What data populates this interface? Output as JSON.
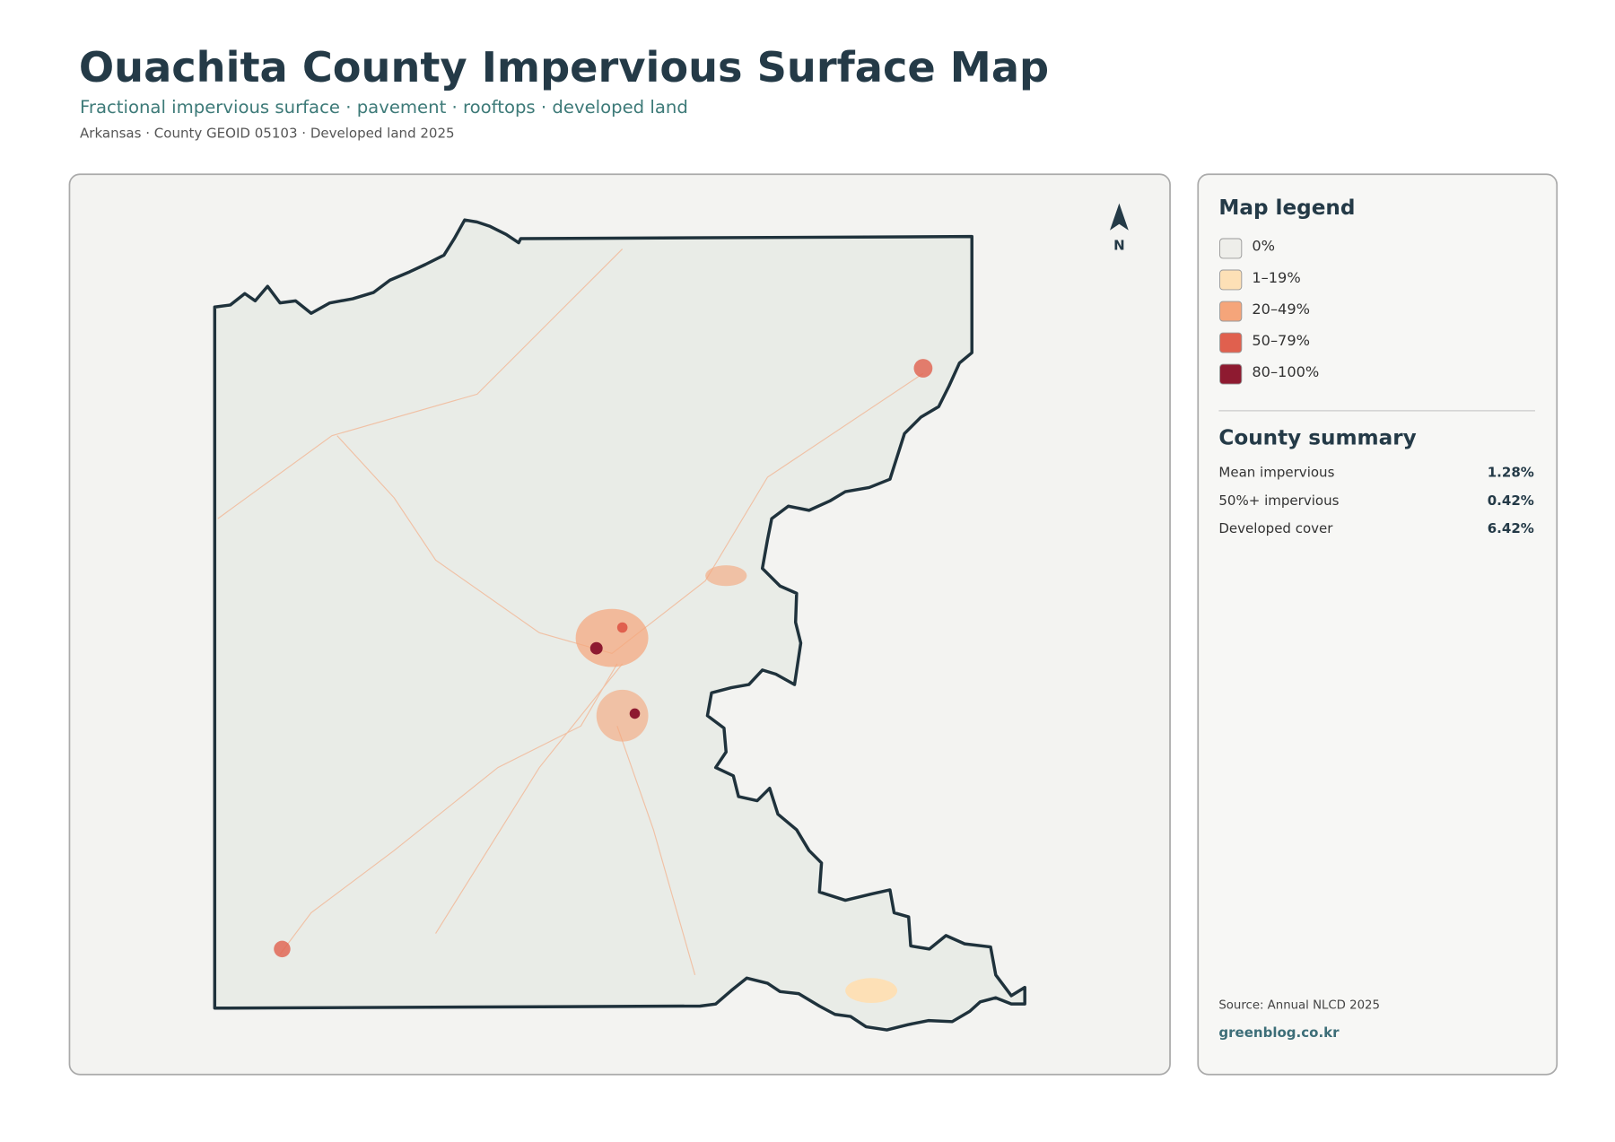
{
  "header": {
    "title": "Ouachita County Impervious Surface Map",
    "subtitle": "Fractional impervious surface · pavement · rooftops · developed land",
    "meta": "Arkansas · County GEOID 05103 · Developed land 2025"
  },
  "map": {
    "north": "N"
  },
  "legend": {
    "title": "Map legend",
    "items": [
      {
        "label": "0%",
        "color": "#eeeeea"
      },
      {
        "label": "1–19%",
        "color": "#fde0b6"
      },
      {
        "label": "20–49%",
        "color": "#f5a57a"
      },
      {
        "label": "50–79%",
        "color": "#e0604e"
      },
      {
        "label": "80–100%",
        "color": "#8e1a30"
      }
    ]
  },
  "summary": {
    "title": "County summary",
    "rows": [
      {
        "label": "Mean impervious",
        "value": "1.28%"
      },
      {
        "label": "50%+ impervious",
        "value": "0.42%"
      },
      {
        "label": "Developed cover",
        "value": "6.42%"
      }
    ]
  },
  "footer": {
    "source": "Source: Annual NLCD 2025",
    "site": "greenblog.co.kr"
  }
}
